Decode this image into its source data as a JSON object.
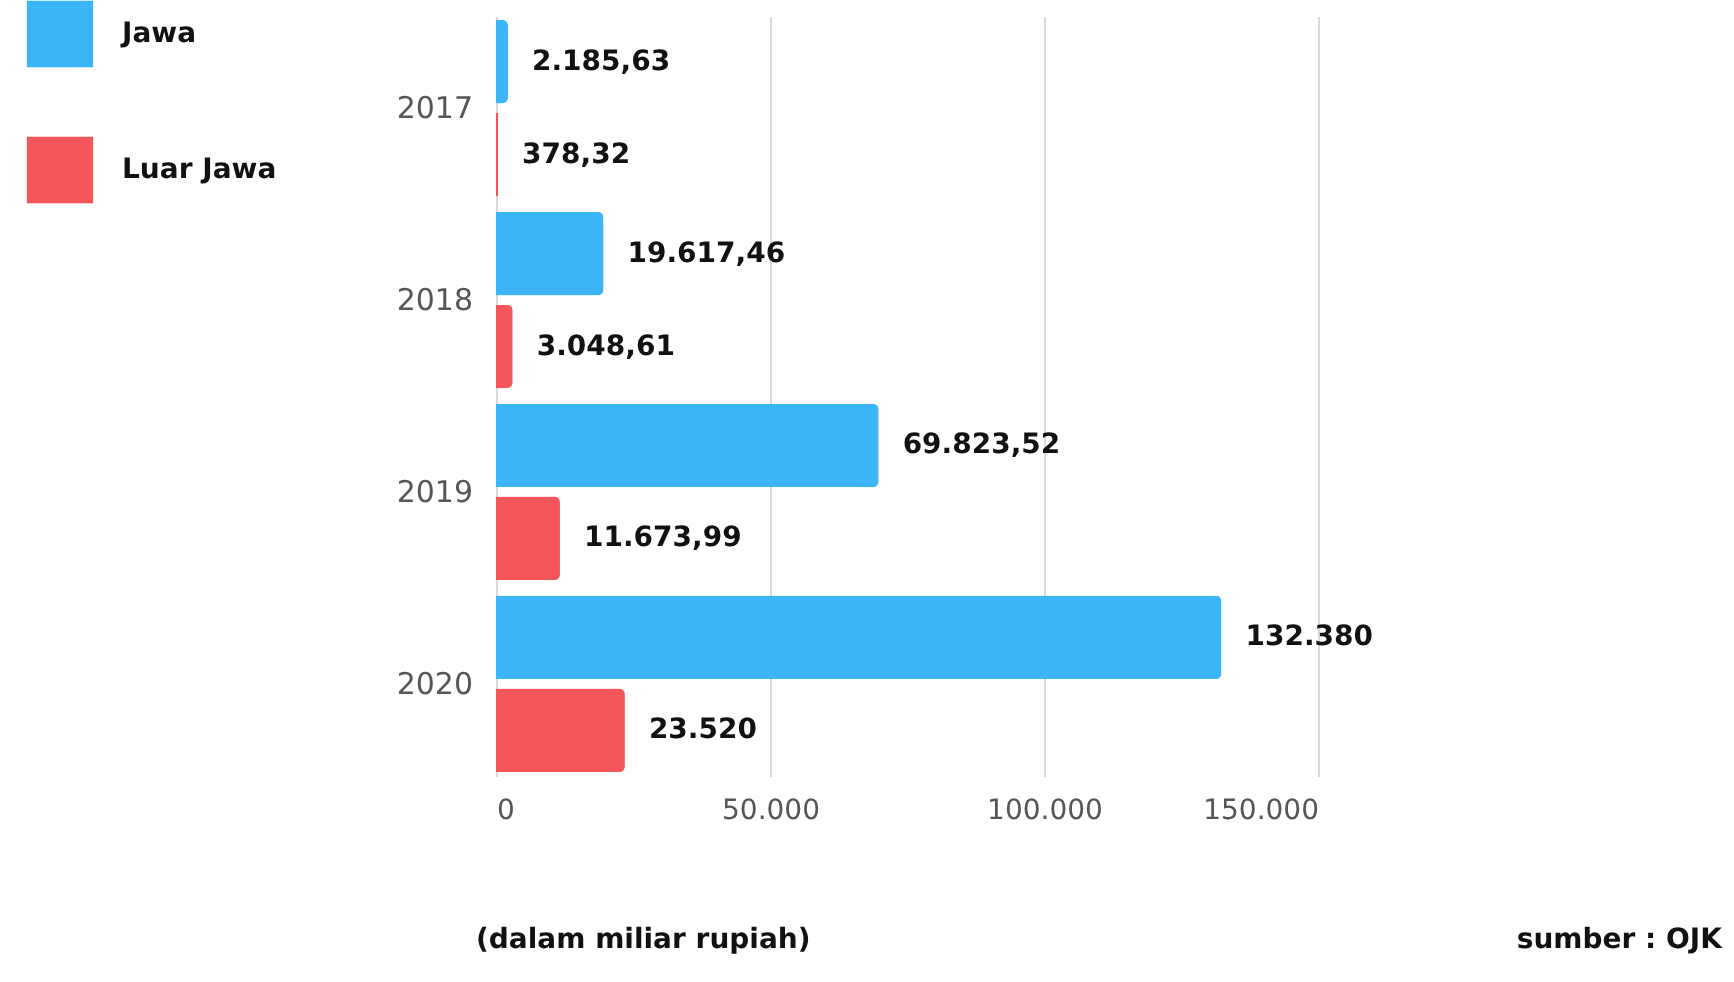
{
  "chart_data": {
    "type": "bar",
    "orientation": "horizontal",
    "categories": [
      "2017",
      "2018",
      "2019",
      "2020"
    ],
    "series": [
      {
        "name": "Jawa",
        "color": "#3bb5f6",
        "values": [
          2185.63,
          19617.46,
          69823.52,
          132380
        ],
        "value_labels": [
          "2.185,63",
          "19.617,46",
          "69.823,52",
          "132.380"
        ]
      },
      {
        "name": "Luar Jawa",
        "color": "#f5565a",
        "values": [
          378.32,
          3048.61,
          11673.99,
          23520
        ],
        "value_labels": [
          "378,32",
          "3.048,61",
          "11.673,99",
          "23.520"
        ]
      }
    ],
    "xlim": [
      0,
      150000
    ],
    "xticks": [
      {
        "value": 0,
        "label": "0"
      },
      {
        "value": 50000,
        "label": "50.000"
      },
      {
        "value": 100000,
        "label": "100.000"
      },
      {
        "value": 150000,
        "label": "150.000"
      }
    ],
    "grid": "x",
    "legend": "top left",
    "annotations": [
      "(dalam miliar rupiah)",
      "sumber : OJK"
    ]
  }
}
